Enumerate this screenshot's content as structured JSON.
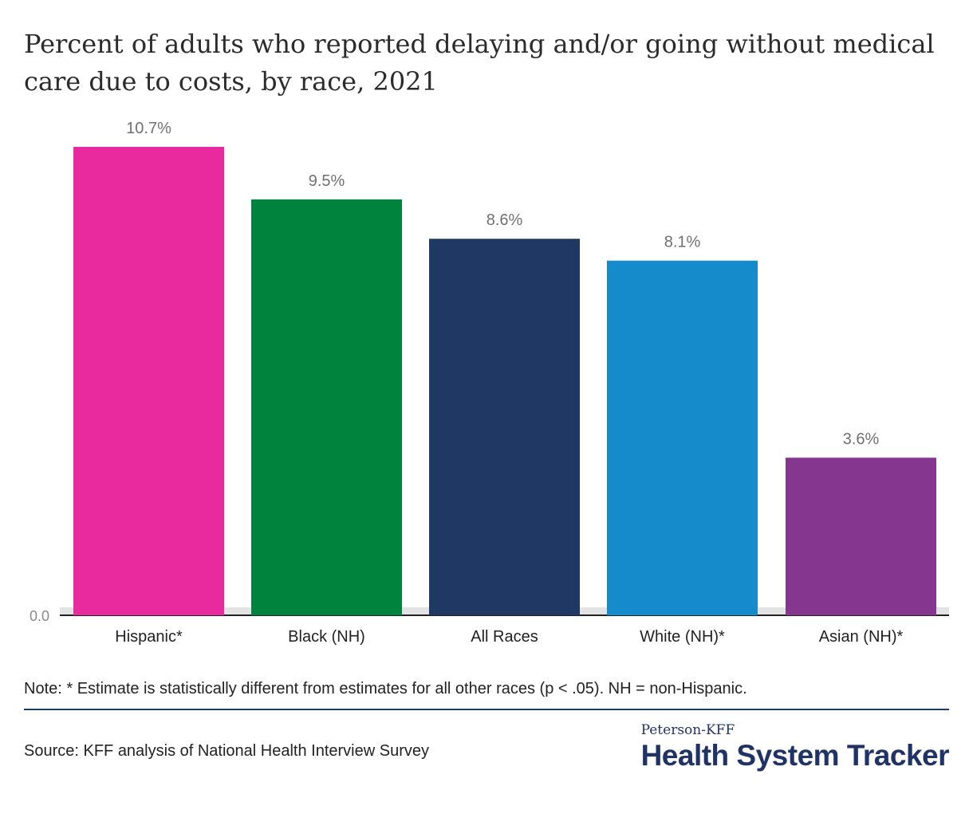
{
  "chart_data": {
    "type": "bar",
    "title": "Percent of adults who reported delaying and/or going without medical care due to costs, by race, 2021",
    "categories": [
      "Hispanic*",
      "Black (NH)",
      "All Races",
      "White (NH)*",
      "Asian (NH)*"
    ],
    "values": [
      10.7,
      9.5,
      8.6,
      8.1,
      3.6
    ],
    "value_labels": [
      "10.7%",
      "9.5%",
      "8.6%",
      "8.1%",
      "3.6%"
    ],
    "colors": [
      "#e92a9e",
      "#00843d",
      "#203864",
      "#168bcc",
      "#853790"
    ],
    "y_tick_label": "0.0",
    "ylim": [
      0,
      10.7
    ],
    "xlabel": "",
    "ylabel": "",
    "grid": false,
    "legend": "none"
  },
  "note": "Note: * Estimate is statistically different from estimates for all other races (p < .05). NH = non-Hispanic.",
  "source": "Source: KFF analysis of National Health Interview Survey",
  "logo": {
    "top": "Peterson-KFF",
    "main": "Health System Tracker"
  }
}
